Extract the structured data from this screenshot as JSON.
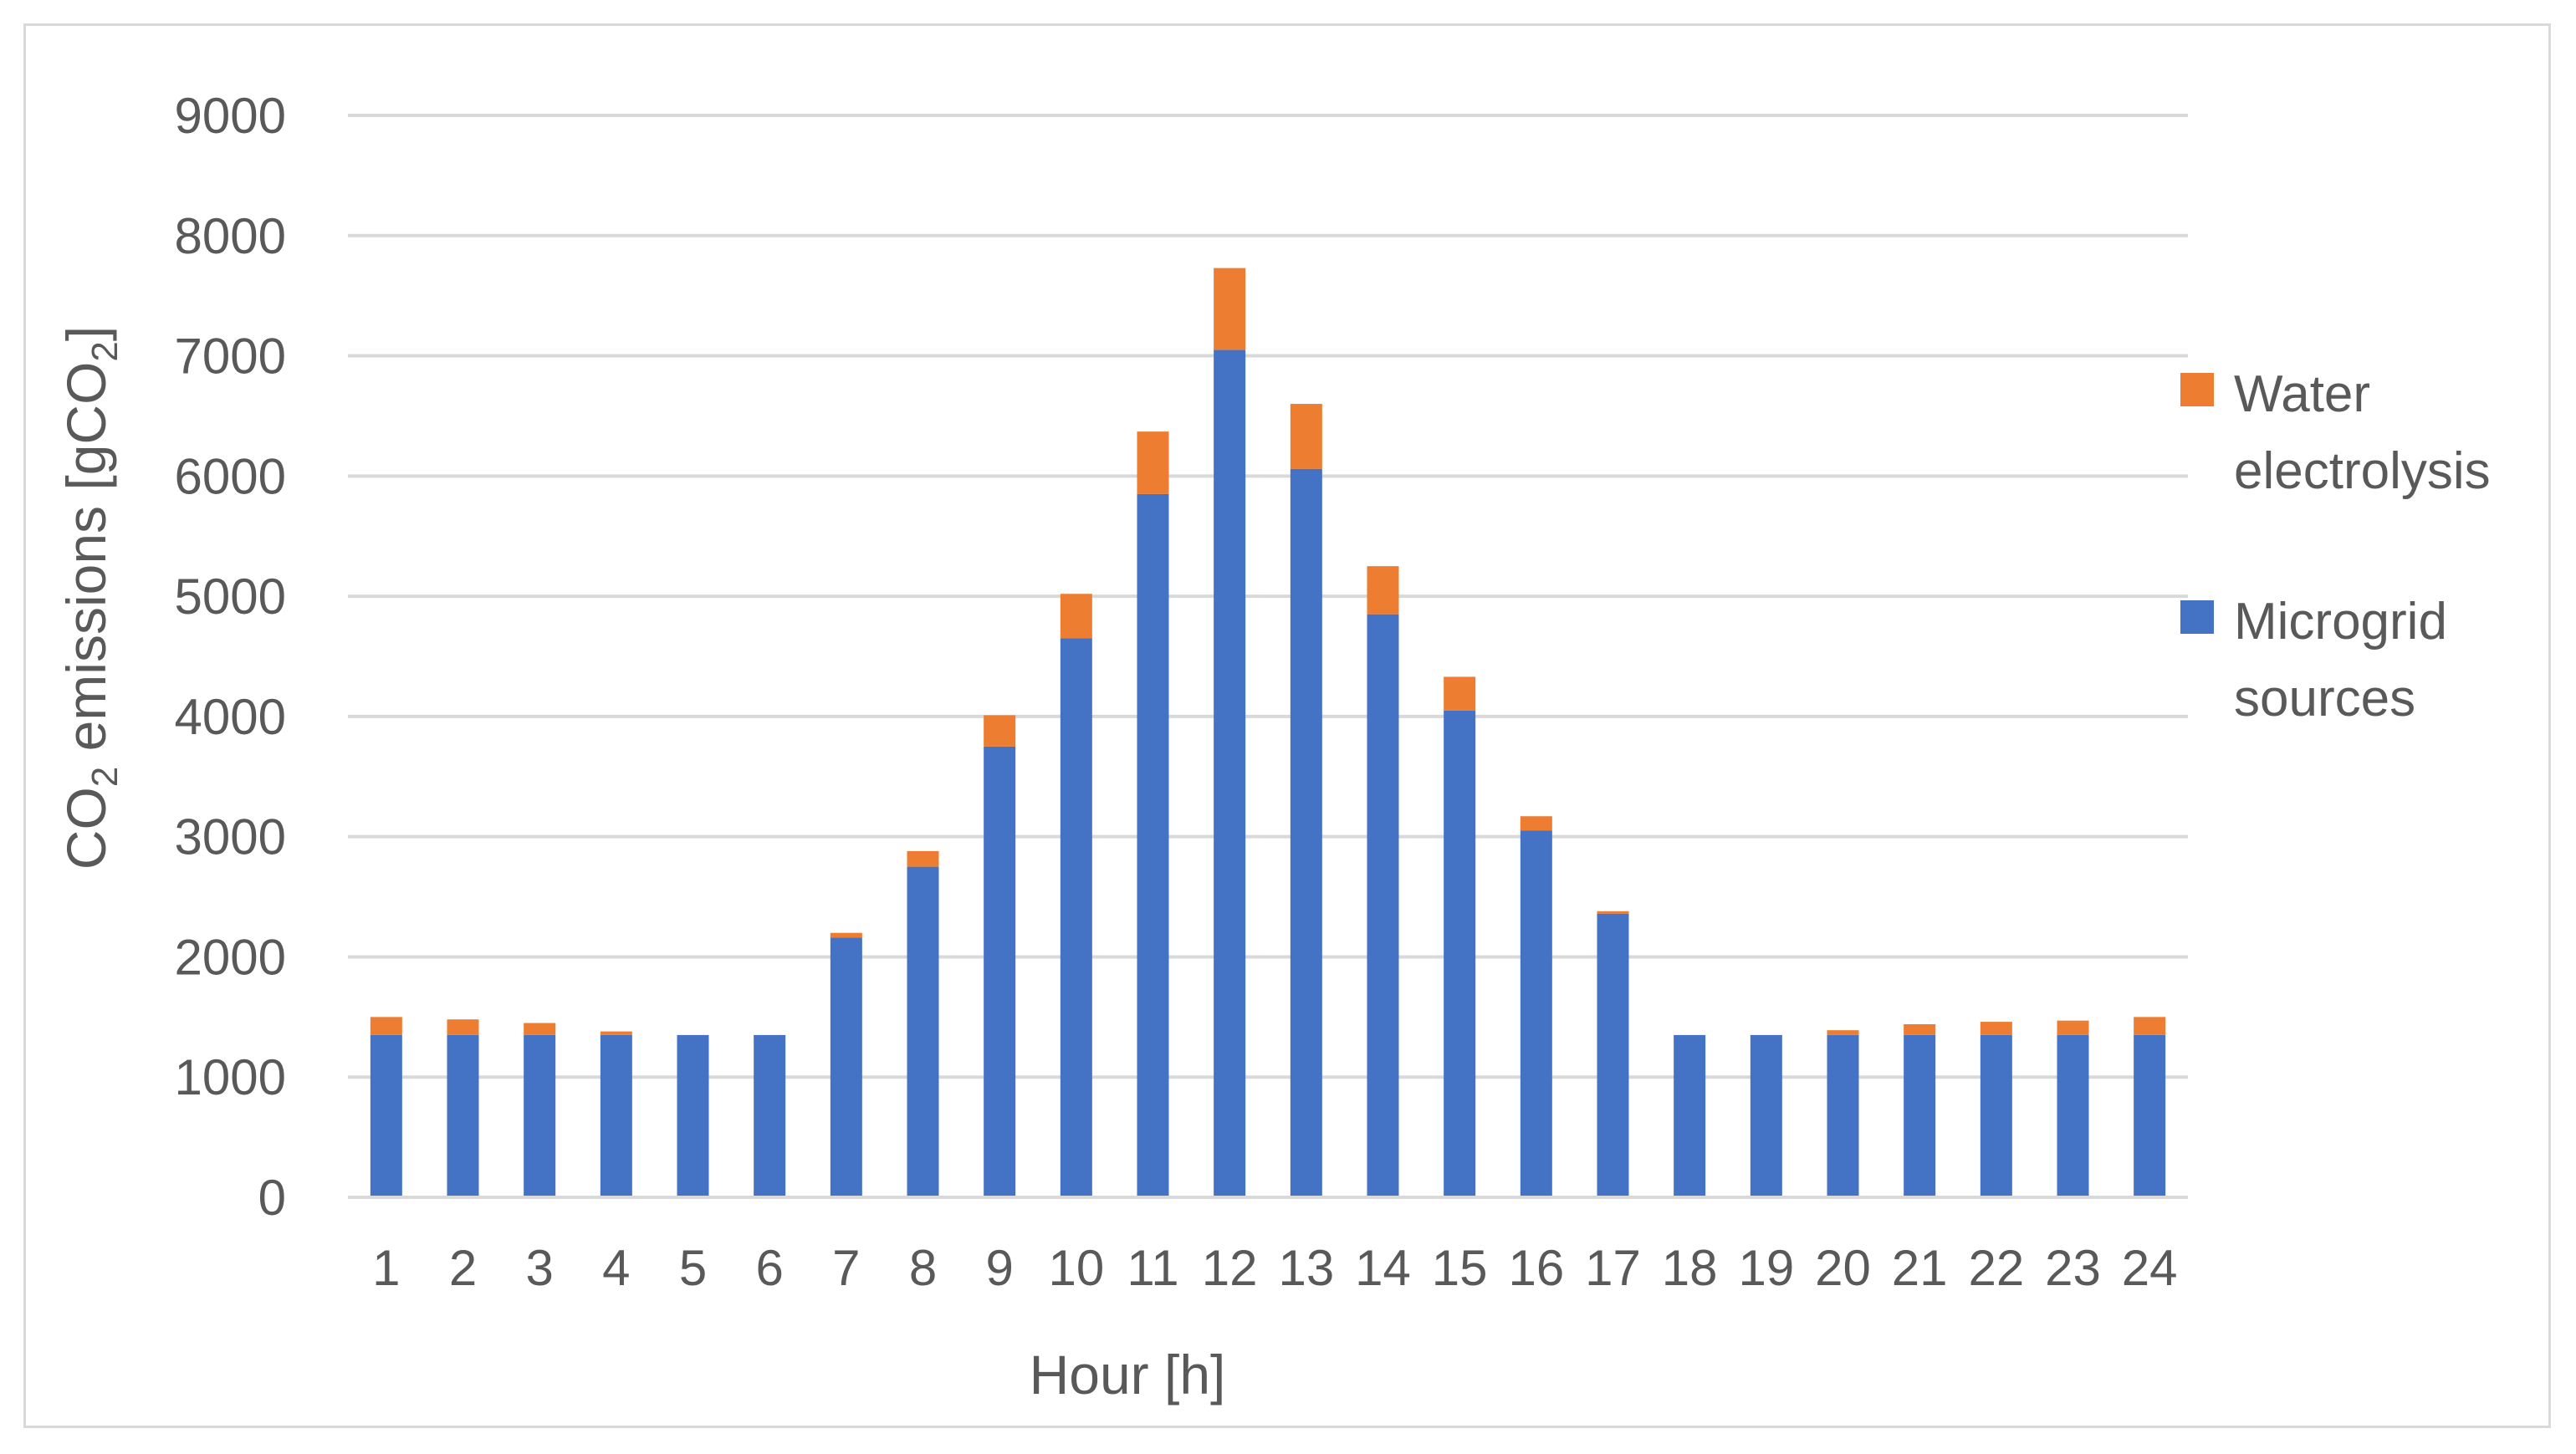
{
  "chart_data": {
    "type": "bar",
    "stacked": true,
    "categories": [
      "1",
      "2",
      "3",
      "4",
      "5",
      "6",
      "7",
      "8",
      "9",
      "10",
      "11",
      "12",
      "13",
      "14",
      "15",
      "16",
      "17",
      "18",
      "19",
      "20",
      "21",
      "22",
      "23",
      "24"
    ],
    "series": [
      {
        "name": "Microgrid sources",
        "color": "#4472c4",
        "values": [
          1350,
          1350,
          1350,
          1350,
          1350,
          1350,
          2160,
          2750,
          3750,
          4650,
          5850,
          7050,
          6060,
          4850,
          4050,
          3050,
          2360,
          1350,
          1350,
          1350,
          1350,
          1350,
          1350,
          1350
        ]
      },
      {
        "name": "Water electrolysis",
        "color": "#ed7d31",
        "values": [
          150,
          130,
          100,
          30,
          0,
          0,
          40,
          130,
          260,
          370,
          520,
          680,
          540,
          400,
          280,
          120,
          20,
          0,
          0,
          40,
          90,
          110,
          120,
          150
        ]
      }
    ],
    "legend": {
      "position": "right",
      "entries": [
        {
          "lines": [
            "Water",
            "electrolysis"
          ],
          "color": "#ed7d31"
        },
        {
          "lines": [
            "Microgrid",
            "sources"
          ],
          "color": "#4472c4"
        }
      ]
    },
    "xlabel": "Hour [h]",
    "ylabel": {
      "prefix": "CO",
      "sub": "2",
      "middle": " emissions [gCO",
      "sub2": "2",
      "suffix": "]"
    },
    "ylim": [
      0,
      9000
    ],
    "yticks": [
      0,
      1000,
      2000,
      3000,
      4000,
      5000,
      6000,
      7000,
      8000,
      9000
    ],
    "grid": true,
    "gridColor": "#d9d9d9"
  }
}
